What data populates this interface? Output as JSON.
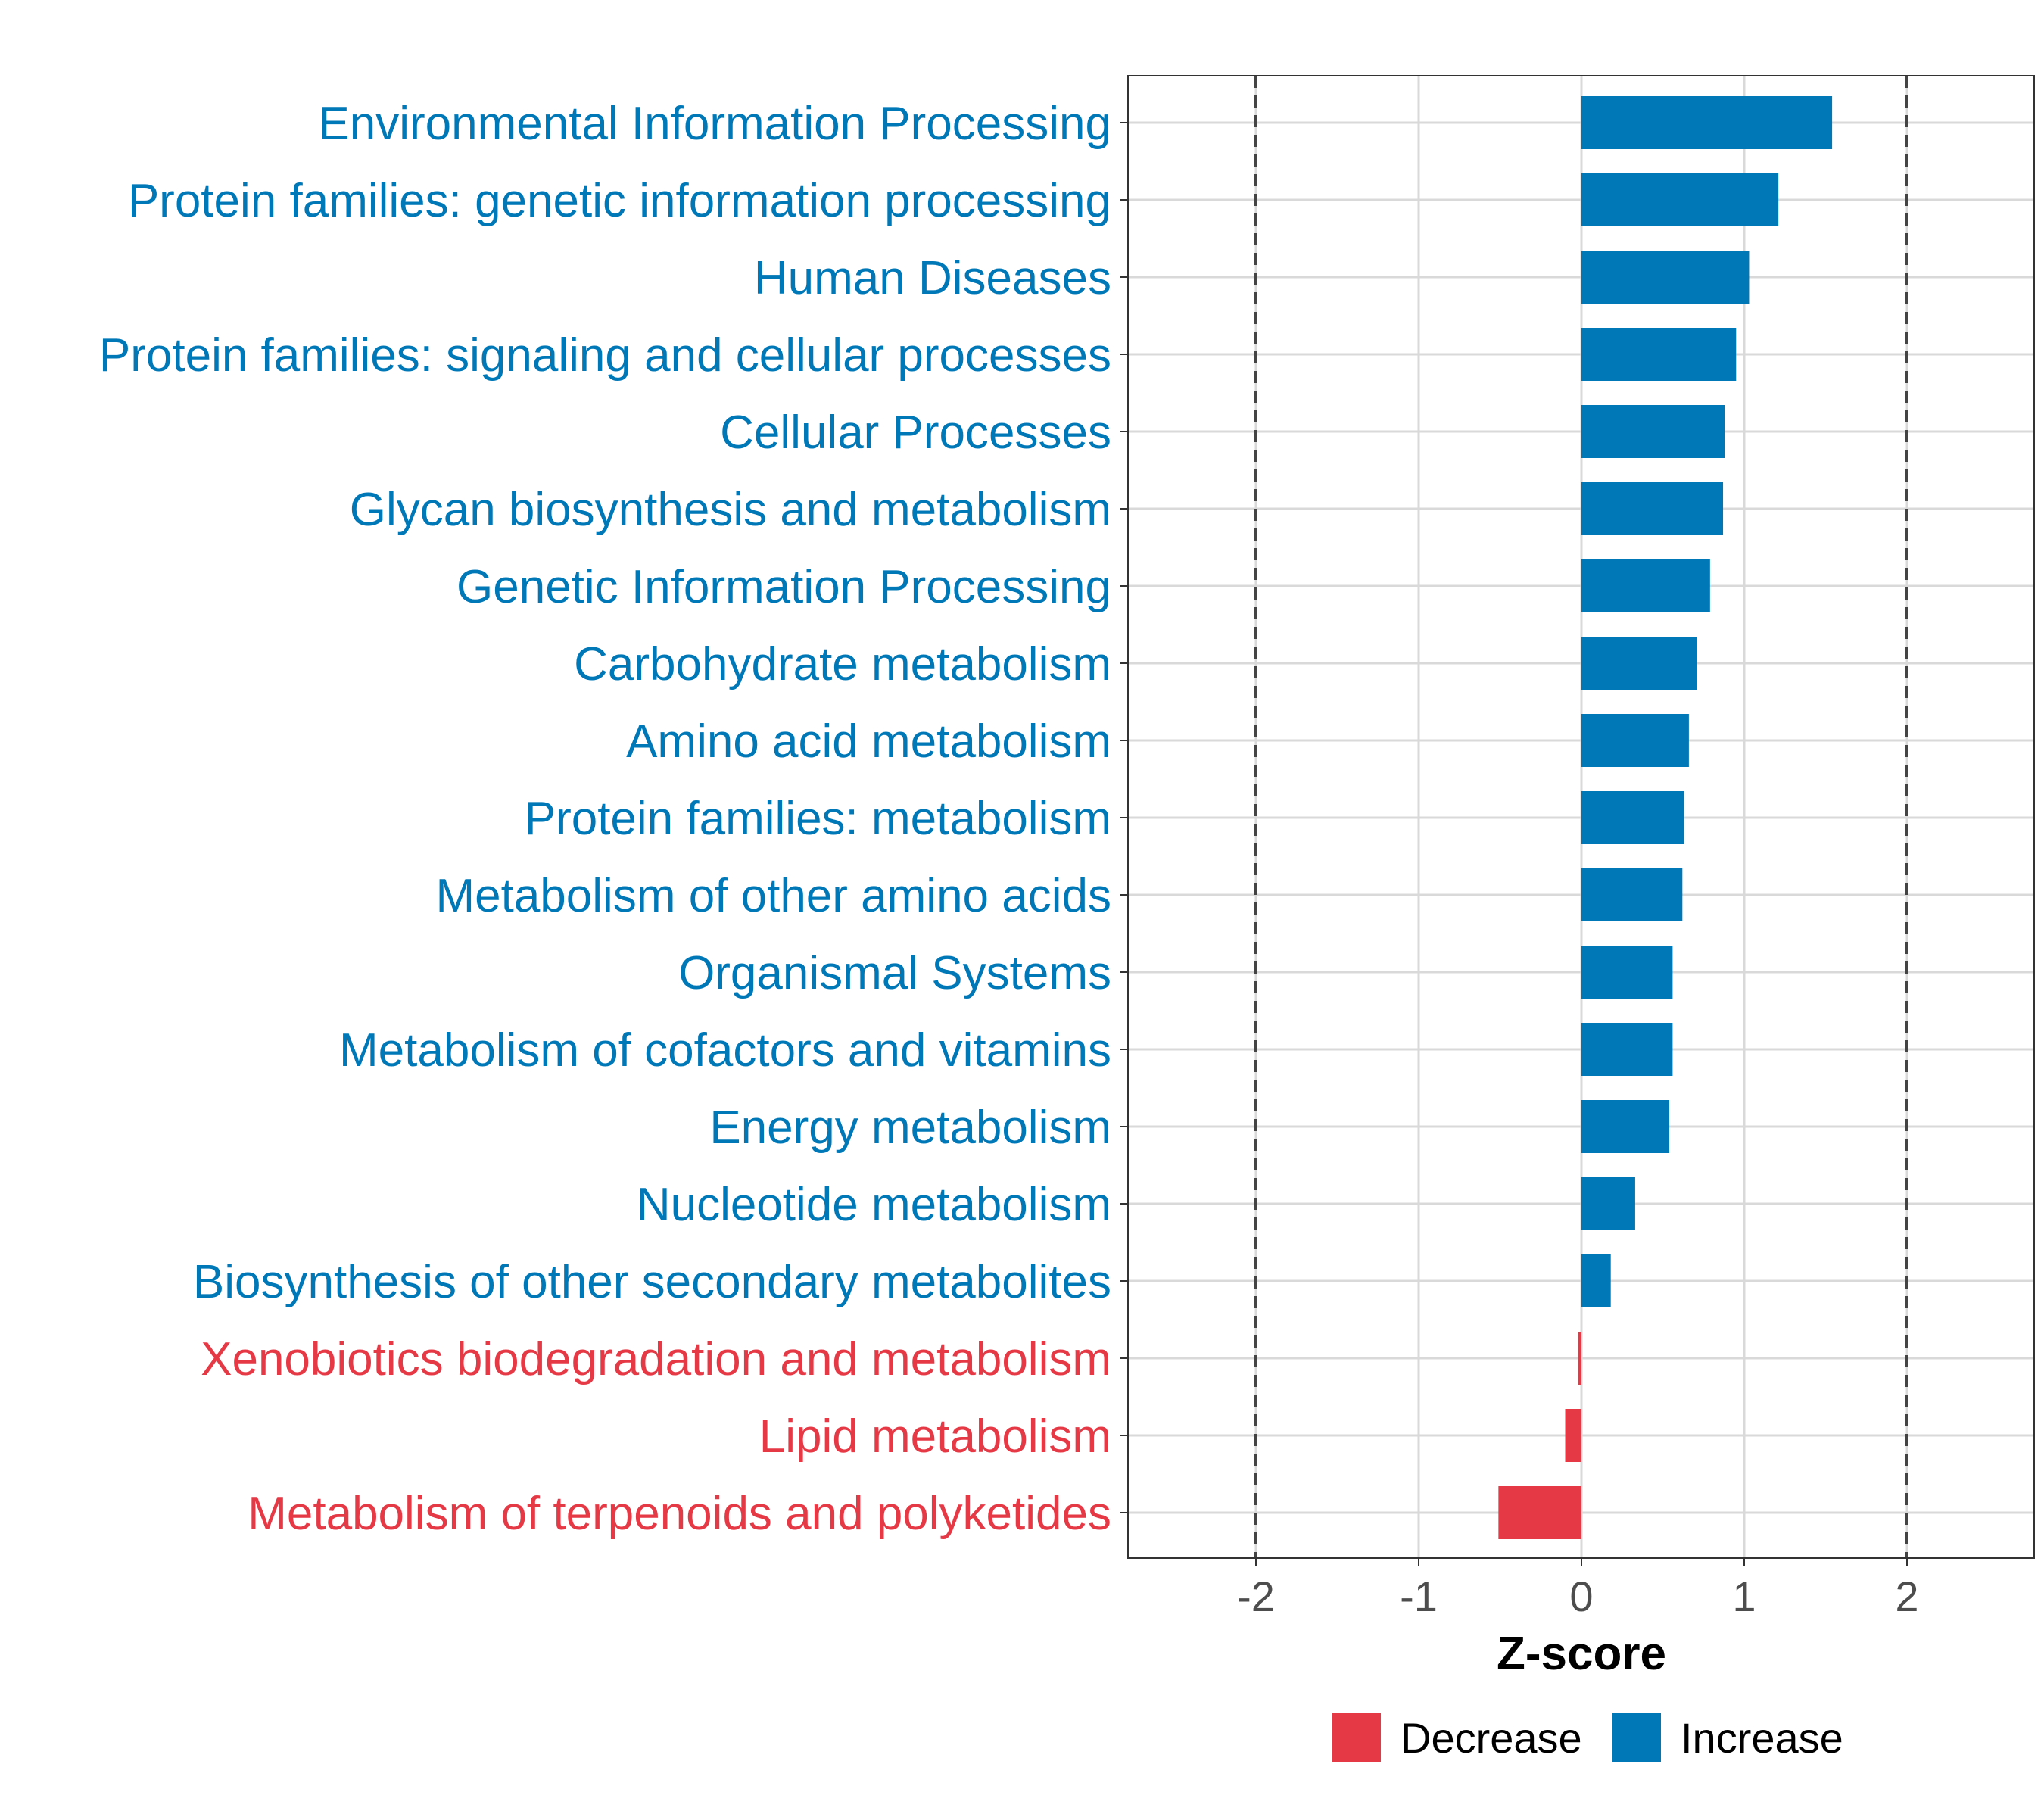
{
  "chart_data": {
    "type": "bar",
    "orientation": "horizontal",
    "xlabel": "Z-score",
    "ylabel": "",
    "xlim": [
      -2.8,
      2.8
    ],
    "xticks": [
      -2,
      -1,
      0,
      1,
      2
    ],
    "xtick_labels": [
      "-2",
      "-1",
      "0",
      "1",
      "2"
    ],
    "reference_lines": [
      -2,
      2
    ],
    "grid": true,
    "categories": [
      "Environmental Information Processing",
      "Protein families: genetic information processing",
      "Human Diseases",
      "Protein families: signaling and cellular processes",
      "Cellular Processes",
      "Glycan biosynthesis and metabolism",
      "Genetic Information Processing",
      "Carbohydrate metabolism",
      "Amino acid metabolism",
      "Protein families: metabolism",
      "Metabolism of other amino acids",
      "Organismal Systems",
      "Metabolism of cofactors and vitamins",
      "Energy metabolism",
      "Nucleotide metabolism",
      "Biosynthesis of other secondary metabolites",
      "Xenobiotics biodegradation and metabolism",
      "Lipid metabolism",
      "Metabolism of terpenoids and polyketides"
    ],
    "values": [
      1.54,
      1.21,
      1.03,
      0.95,
      0.88,
      0.87,
      0.79,
      0.71,
      0.66,
      0.63,
      0.62,
      0.56,
      0.56,
      0.54,
      0.33,
      0.18,
      -0.02,
      -0.1,
      -0.51
    ],
    "groups": [
      "Increase",
      "Increase",
      "Increase",
      "Increase",
      "Increase",
      "Increase",
      "Increase",
      "Increase",
      "Increase",
      "Increase",
      "Increase",
      "Increase",
      "Increase",
      "Increase",
      "Increase",
      "Increase",
      "Decrease",
      "Decrease",
      "Decrease"
    ],
    "legend": {
      "position": "bottom",
      "entries": [
        {
          "label": "Decrease",
          "color": "#e63946"
        },
        {
          "label": "Increase",
          "color": "#0077b6"
        }
      ]
    }
  }
}
